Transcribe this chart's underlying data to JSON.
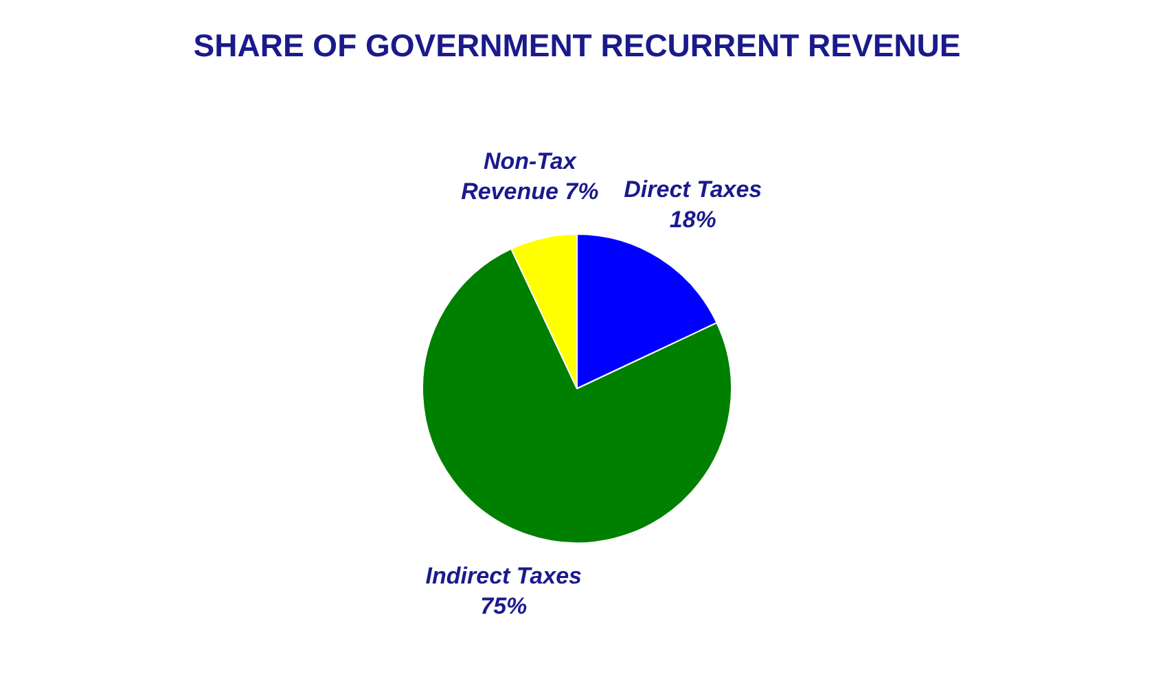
{
  "chart_data": {
    "type": "pie",
    "title": "SHARE OF GOVERNMENT RECURRENT REVENUE",
    "categories": [
      "Direct Taxes",
      "Indirect Taxes",
      "Non-Tax Revenue"
    ],
    "values": [
      18,
      75,
      7
    ],
    "value_labels": [
      "18%",
      "75%",
      "7%"
    ],
    "colors": [
      "#0000ff",
      "#008000",
      "#ffff00"
    ],
    "legend": false
  }
}
